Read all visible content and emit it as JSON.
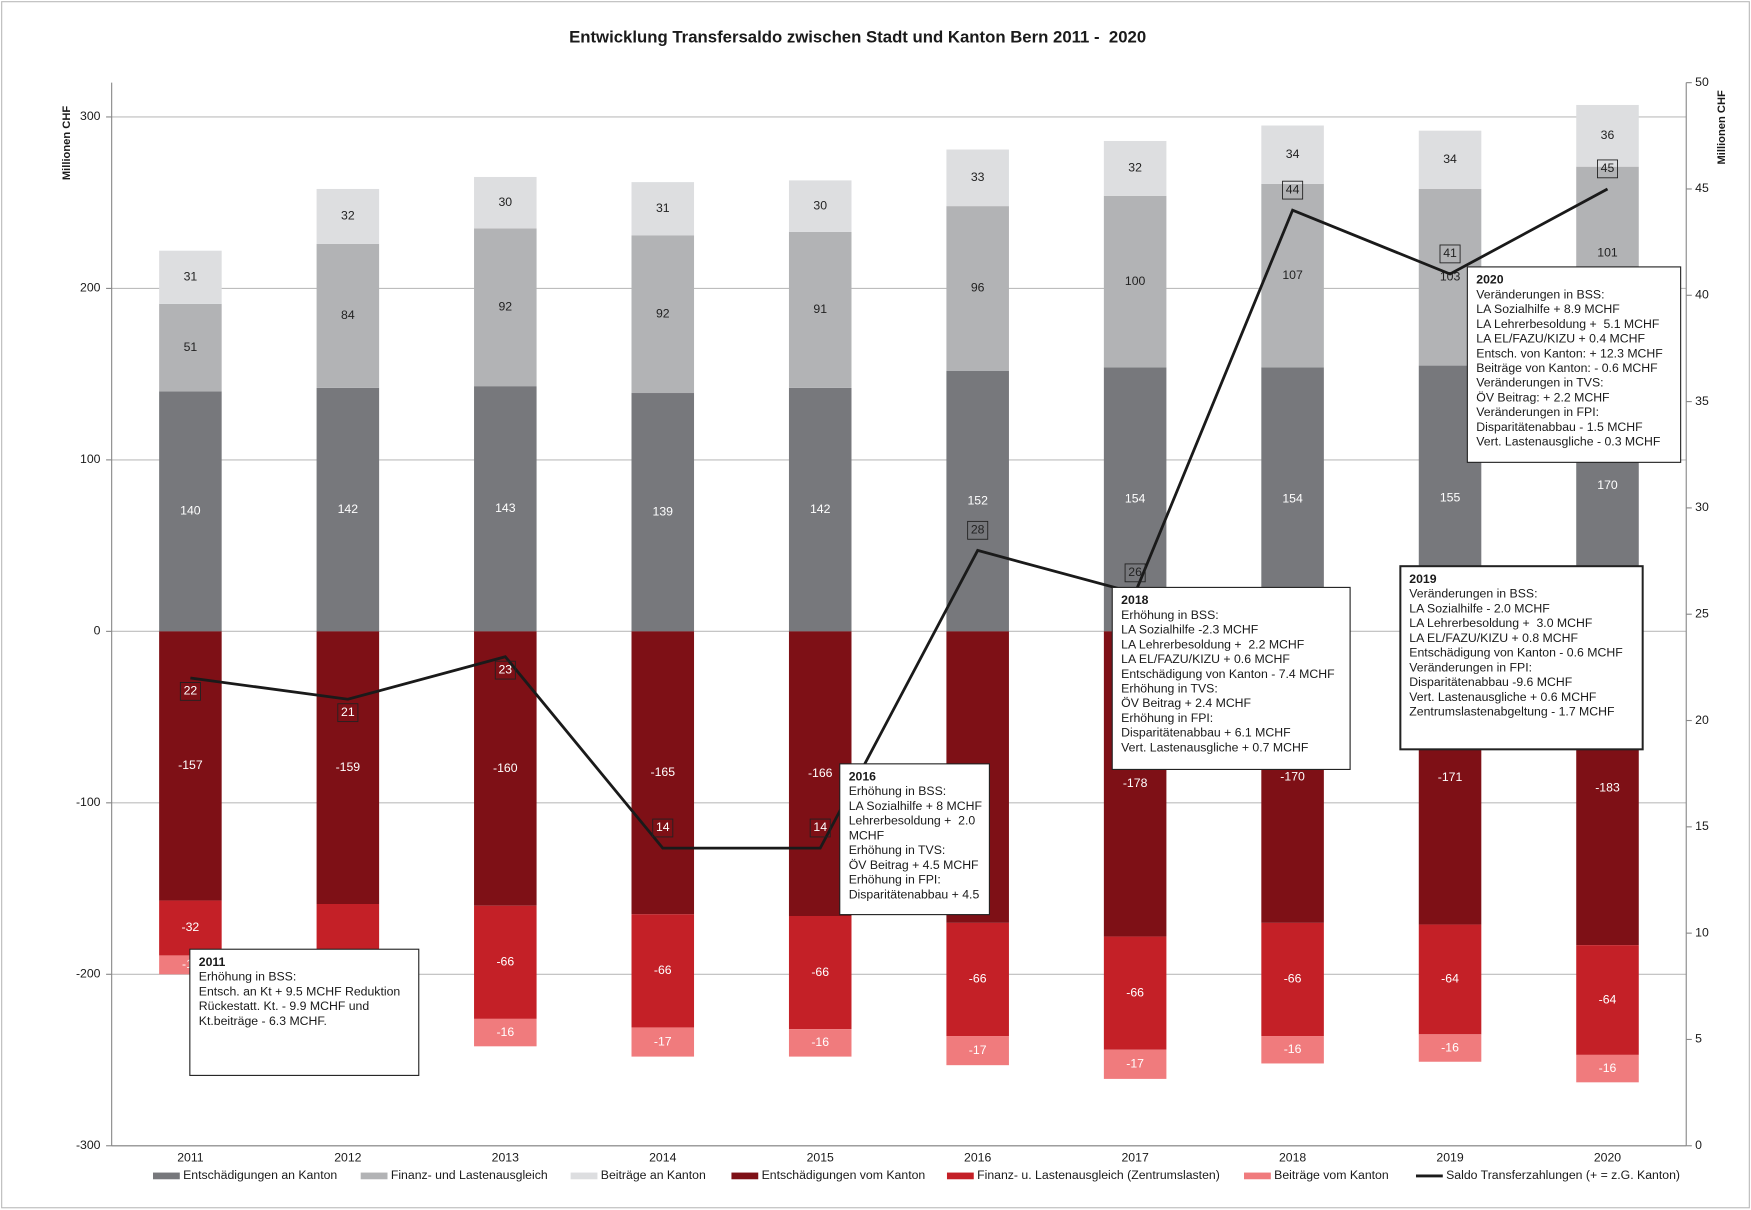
{
  "chart_data": {
    "type": "stacked_bar_line",
    "title": "Entwicklung Transfersaldo zwischen Stadt und Kanton Bern 2011 -  2020",
    "y_label": "Millionen CHF",
    "y2_label": "Millionen CHF",
    "categories": [
      "2011",
      "2012",
      "2013",
      "2014",
      "2015",
      "2016",
      "2017",
      "2018",
      "2019",
      "2020"
    ],
    "ylim": [
      -300,
      320
    ],
    "yticks": [
      -300,
      -200,
      -100,
      0,
      100,
      200,
      300
    ],
    "y2lim": [
      0,
      50
    ],
    "y2ticks": [
      0,
      5,
      10,
      15,
      20,
      25,
      30,
      35,
      40,
      45,
      50
    ],
    "grid": true,
    "legend": "bottom",
    "series": [
      {
        "name": "Entschädigungen an Kanton",
        "color": "#77787c",
        "values": [
          140,
          142,
          143,
          139,
          142,
          152,
          154,
          154,
          155,
          170
        ]
      },
      {
        "name": "Finanz- und Lastenausgleich",
        "color": "#b2b3b5",
        "values": [
          51,
          84,
          92,
          92,
          91,
          96,
          100,
          107,
          103,
          101
        ]
      },
      {
        "name": "Beiträge an Kanton",
        "color": "#dddee0",
        "values": [
          31,
          32,
          30,
          31,
          30,
          33,
          32,
          34,
          34,
          36
        ]
      },
      {
        "name": "Entschädigungen vom Kanton",
        "color": "#7e1016",
        "values": [
          -157,
          -159,
          -160,
          -165,
          -166,
          -170,
          -178,
          -170,
          -171,
          -183
        ]
      },
      {
        "name": "Finanz- u. Lastenausgleich (Zentrumslasten)",
        "color": "#c42027",
        "values": [
          -32,
          -62,
          -66,
          -66,
          -66,
          -66,
          -66,
          -66,
          -64,
          -64
        ]
      },
      {
        "name": "Beiträge vom Kanton",
        "color": "#f07b7d",
        "values": [
          -11,
          -16,
          -16,
          -17,
          -16,
          -17,
          -17,
          -16,
          -16,
          -16
        ]
      },
      {
        "name": "Saldo Transferzahlungen (+ = z.G. Kanton)",
        "color": "#1a1a1a",
        "type": "line",
        "axis": "y2",
        "values": [
          22,
          21,
          23,
          14,
          14,
          28,
          26,
          44,
          41,
          45
        ]
      }
    ],
    "annotations": [
      {
        "lines": [
          "2011",
          "Erhöhung in BSS:",
          "Entsch. an Kt + 9.5 MCHF Reduktion",
          "Rückestatt. Kt. - 9.9 MCHF und",
          "Kt.beiträge - 6.3 MCHF."
        ]
      },
      {
        "lines": [
          "2016",
          "Erhöhung in BSS:",
          "LA Sozialhilfe + 8 MCHF",
          "Lehrerbesoldung +  2.0",
          "MCHF",
          "Erhöhung in TVS:",
          "ÖV Beitrag + 4.5 MCHF",
          "Erhöhung in FPI:",
          "Disparitätenabbau + 4.5"
        ]
      },
      {
        "lines": [
          "2018",
          "Erhöhung in BSS:",
          "LA Sozialhilfe -2.3 MCHF",
          "LA Lehrerbesoldung +  2.2 MCHF",
          "LA EL/FAZU/KIZU + 0.6 MCHF",
          "Entschädigung von Kanton - 7.4 MCHF",
          "Erhöhung in TVS:",
          "ÖV Beitrag + 2.4 MCHF",
          "Erhöhung in FPI:",
          "Disparitätenabbau + 6.1 MCHF",
          "Vert. Lastenausgliche + 0.7 MCHF"
        ]
      },
      {
        "lines": [
          "2019",
          "Veränderungen in BSS:",
          "LA Sozialhilfe - 2.0 MCHF",
          "LA Lehrerbesoldung +  3.0 MCHF",
          "LA EL/FAZU/KIZU + 0.8 MCHF",
          "Entschädigung von Kanton - 0.6 MCHF",
          "Veränderungen in FPI:",
          "Disparitätenabbau -9.6 MCHF",
          "Vert. Lastenausgliche + 0.6 MCHF",
          "Zentrumslastenabgeltung - 1.7 MCHF"
        ]
      },
      {
        "lines": [
          "2020",
          "Veränderungen in BSS:",
          "LA Sozialhilfe + 8.9 MCHF",
          "LA Lehrerbesoldung +  5.1 MCHF",
          "LA EL/FAZU/KIZU + 0.4 MCHF",
          "Entsch. von Kanton: + 12.3 MCHF",
          "Beiträge von Kanton: - 0.6 MCHF",
          "Veränderungen in TVS:",
          "ÖV Beitrag: + 2.2 MCHF",
          "Veränderungen in FPI:",
          "Disparitätenabbau - 1.5 MCHF",
          "Vert. Lastenausgliche - 0.3 MCHF"
        ]
      }
    ]
  }
}
